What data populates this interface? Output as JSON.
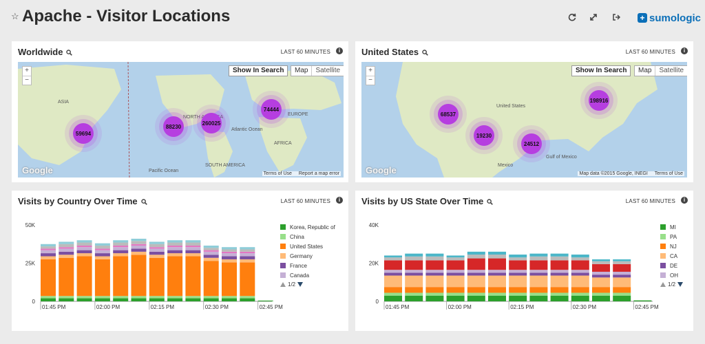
{
  "header": {
    "title": "Apache - Visitor Locations",
    "logo_text": "sumologic"
  },
  "panels": {
    "worldwide": {
      "title": "Worldwide",
      "range": "LAST 60 MINUTES",
      "show_in_search": "Show In Search",
      "map_type": [
        "Map",
        "Satellite"
      ],
      "google": "Google",
      "footer": [
        "Terms of Use",
        "Report a map error"
      ],
      "clusters": [
        "59694",
        "88230",
        "260025",
        "74444"
      ],
      "places": [
        "ASIA",
        "NORTH AMERICA",
        "Atlantic Ocean",
        "EUROPE",
        "AFRICA",
        "Pacific Ocean",
        "SOUTH AMERICA"
      ]
    },
    "us": {
      "title": "United States",
      "range": "LAST 60 MINUTES",
      "show_in_search": "Show In Search",
      "map_type": [
        "Map",
        "Satellite"
      ],
      "google": "Google",
      "footer": [
        "Map data ©2015 Google, INEGI",
        "Terms of Use"
      ],
      "clusters": [
        "68537",
        "19230",
        "24512",
        "198916"
      ],
      "places": [
        "United States",
        "Mexico",
        "Gulf of Mexico"
      ]
    },
    "country": {
      "title": "Visits by Country Over Time",
      "range": "LAST 60 MINUTES",
      "pager": "1/2"
    },
    "state": {
      "title": "Visits by US State Over Time",
      "range": "LAST 60 MINUTES",
      "pager": "1/2"
    }
  },
  "colors": {
    "accent": "#0b6fb8",
    "cluster": "#b63ee0",
    "water": "#b3d1ea",
    "land": "#dfe9c4"
  },
  "chart_data": [
    {
      "type": "bar",
      "stacked": true,
      "x_tick_labels": [
        "01:45 PM",
        "02:00 PM",
        "02:15 PM",
        "02:30 PM",
        "02:45 PM"
      ],
      "y_tick_labels": [
        "50K",
        "25K",
        "0"
      ],
      "ylim": [
        0,
        50000
      ],
      "legend_position": "right",
      "series": [
        {
          "name": "Korea, Republic of",
          "color": "#2ca02c",
          "values": [
            2000,
            2000,
            2000,
            2000,
            2000,
            2000,
            2000,
            2000,
            2000,
            2000,
            2000,
            2000,
            500
          ]
        },
        {
          "name": "China",
          "color": "#98df8a",
          "values": [
            1500,
            1500,
            1500,
            1500,
            1500,
            1500,
            1500,
            1500,
            1500,
            1500,
            1500,
            1500,
            0
          ]
        },
        {
          "name": "United States",
          "color": "#ff7f0e",
          "values": [
            24000,
            25000,
            26000,
            24000,
            26000,
            27000,
            25000,
            26000,
            26000,
            23000,
            22000,
            22000,
            0
          ]
        },
        {
          "name": "Germany",
          "color": "#ffbb78",
          "values": [
            2000,
            2000,
            2000,
            2000,
            2000,
            2000,
            2000,
            2000,
            2000,
            2000,
            2000,
            2000,
            0
          ]
        },
        {
          "name": "France",
          "color": "#7b4fa0",
          "values": [
            2000,
            2000,
            2000,
            2000,
            2000,
            2000,
            2000,
            2000,
            2000,
            2000,
            2000,
            2000,
            0
          ]
        },
        {
          "name": "Canada",
          "color": "#c5b0d5",
          "values": [
            2000,
            2000,
            2000,
            2000,
            2000,
            2000,
            2000,
            2000,
            2000,
            2000,
            2000,
            2000,
            0
          ]
        },
        {
          "name": "",
          "color": "#e377c2",
          "values": [
            1000,
            1000,
            1000,
            1000,
            1000,
            1000,
            1000,
            1000,
            1000,
            1000,
            1000,
            1000,
            0
          ]
        },
        {
          "name": "",
          "color": "#bbbbbb",
          "values": [
            1500,
            2000,
            2000,
            2000,
            2000,
            2000,
            2000,
            2000,
            2000,
            1500,
            1500,
            1500,
            0
          ]
        },
        {
          "name": "",
          "color": "#8fcdd8",
          "values": [
            1500,
            1500,
            1500,
            1500,
            1500,
            1500,
            1500,
            1500,
            1500,
            1500,
            1500,
            1500,
            0
          ]
        }
      ]
    },
    {
      "type": "bar",
      "stacked": true,
      "x_tick_labels": [
        "01:45 PM",
        "02:00 PM",
        "02:15 PM",
        "02:30 PM",
        "02:45 PM"
      ],
      "y_tick_labels": [
        "40K",
        "20K",
        "0"
      ],
      "ylim": [
        0,
        40000
      ],
      "legend_position": "right",
      "series": [
        {
          "name": "MI",
          "color": "#2ca02c",
          "values": [
            3000,
            3000,
            3000,
            3000,
            3000,
            3000,
            3000,
            3000,
            3000,
            3000,
            3000,
            3000,
            500
          ]
        },
        {
          "name": "PA",
          "color": "#98df8a",
          "values": [
            1500,
            1500,
            1500,
            1500,
            1500,
            1500,
            1500,
            1500,
            1500,
            1500,
            1500,
            1500,
            0
          ]
        },
        {
          "name": "NJ",
          "color": "#ff7f0e",
          "values": [
            3000,
            3000,
            3000,
            3000,
            3000,
            3000,
            3000,
            3000,
            3000,
            3000,
            3000,
            3000,
            0
          ]
        },
        {
          "name": "CA",
          "color": "#ffbb78",
          "values": [
            6000,
            6000,
            6000,
            6000,
            6000,
            6000,
            6000,
            6000,
            6000,
            6000,
            5000,
            5000,
            0
          ]
        },
        {
          "name": "DE",
          "color": "#7b4fa0",
          "values": [
            1500,
            1500,
            1500,
            1500,
            1500,
            1500,
            1500,
            1500,
            1500,
            1500,
            1500,
            1500,
            0
          ]
        },
        {
          "name": "OH",
          "color": "#c5b0d5",
          "values": [
            1500,
            1500,
            1500,
            1500,
            1500,
            1500,
            1500,
            1500,
            1500,
            1500,
            1500,
            1500,
            0
          ]
        },
        {
          "name": "",
          "color": "#d62728",
          "values": [
            5000,
            5000,
            5000,
            5000,
            6000,
            6000,
            5000,
            5000,
            5000,
            5000,
            4000,
            4000,
            0
          ]
        },
        {
          "name": "",
          "color": "#bbbbbb",
          "values": [
            1500,
            2000,
            2000,
            1500,
            2000,
            2000,
            1500,
            2000,
            2000,
            1500,
            1500,
            1500,
            0
          ]
        },
        {
          "name": "",
          "color": "#4bb6c8",
          "values": [
            1000,
            1500,
            1500,
            1000,
            1500,
            1500,
            1500,
            1500,
            1500,
            1500,
            1000,
            1000,
            0
          ]
        }
      ]
    }
  ]
}
